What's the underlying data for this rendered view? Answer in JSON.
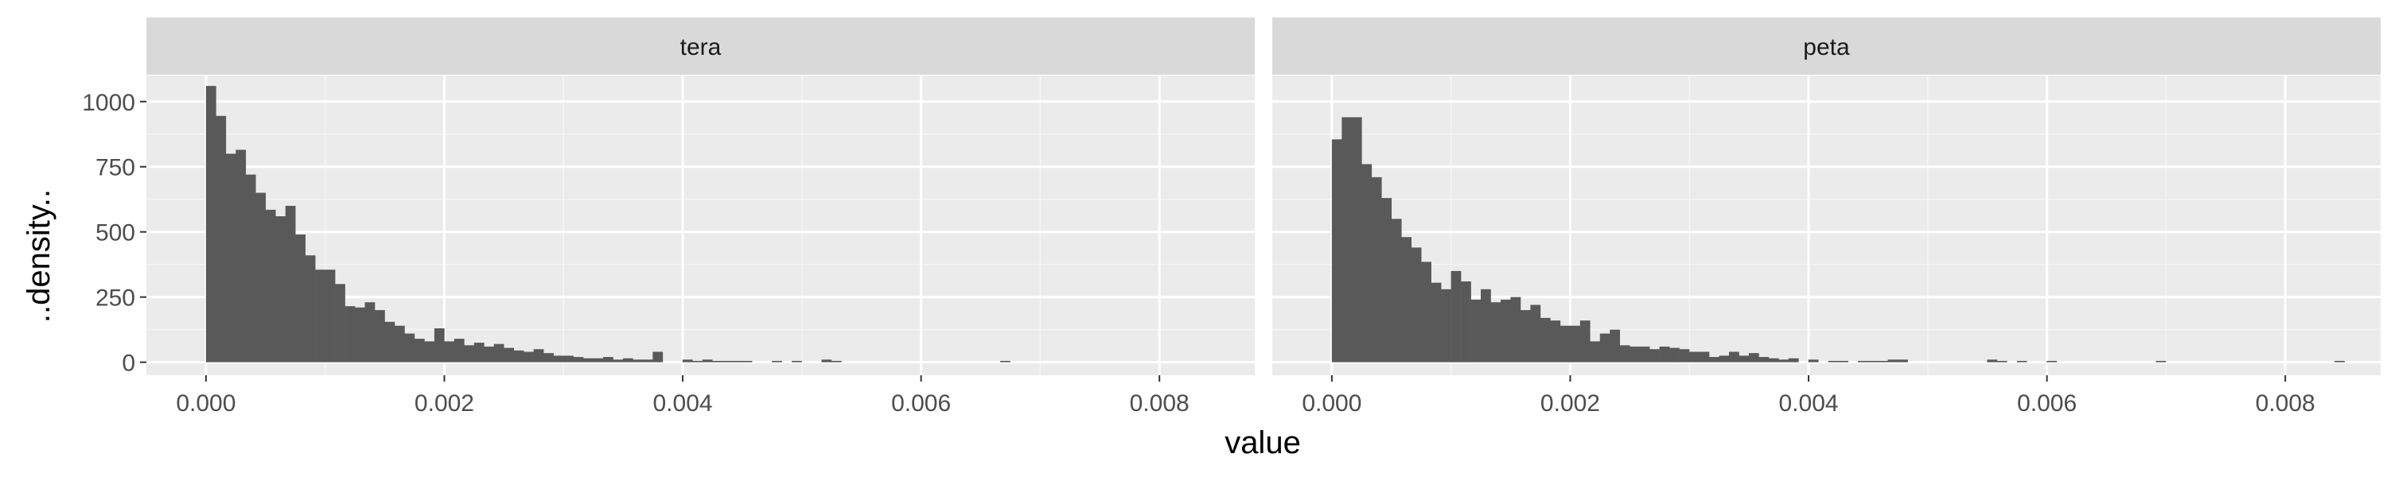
{
  "chart_data": {
    "type": "bar",
    "subtype": "faceted-histogram",
    "xlabel": "value",
    "ylabel": "..density..",
    "x_ticks": [
      "0.000",
      "0.002",
      "0.004",
      "0.006",
      "0.008"
    ],
    "x_tick_values": [
      0,
      0.002,
      0.004,
      0.006,
      0.008
    ],
    "xlim": [
      -0.0005,
      0.0088
    ],
    "y_ticks": [
      "0",
      "250",
      "500",
      "750",
      "1000"
    ],
    "y_tick_values": [
      0,
      250,
      500,
      750,
      1000
    ],
    "ylim": [
      -50,
      1100
    ],
    "grid": true,
    "bin_width": 8.33e-05,
    "bar_color": "#595959",
    "panel_background": "#ebebeb",
    "strip_background": "#d9d9d9",
    "facets": [
      {
        "strip_label": "tera",
        "values": [
          1060,
          945,
          800,
          815,
          720,
          650,
          585,
          560,
          600,
          490,
          410,
          355,
          355,
          300,
          215,
          210,
          230,
          200,
          155,
          140,
          110,
          90,
          80,
          130,
          80,
          90,
          65,
          75,
          60,
          70,
          55,
          45,
          40,
          50,
          35,
          25,
          25,
          20,
          15,
          15,
          20,
          10,
          15,
          10,
          10,
          40,
          0,
          0,
          10,
          5,
          10,
          5,
          5,
          5,
          5,
          0,
          0,
          5,
          0,
          5,
          0,
          0,
          10,
          5,
          0,
          0,
          0,
          0,
          0,
          0,
          0,
          0,
          0,
          0,
          0,
          0,
          0,
          0,
          0,
          0,
          5
        ]
      },
      {
        "strip_label": "peta",
        "values": [
          855,
          940,
          940,
          760,
          710,
          630,
          550,
          480,
          440,
          385,
          305,
          280,
          350,
          310,
          240,
          280,
          230,
          240,
          250,
          200,
          220,
          170,
          160,
          140,
          140,
          160,
          80,
          110,
          125,
          65,
          60,
          60,
          50,
          60,
          55,
          50,
          40,
          40,
          20,
          25,
          40,
          25,
          35,
          20,
          15,
          10,
          15,
          0,
          10,
          0,
          5,
          5,
          0,
          5,
          5,
          5,
          10,
          10,
          0,
          0,
          0,
          0,
          0,
          0,
          0,
          0,
          10,
          5,
          0,
          5,
          0,
          0,
          5,
          0,
          0,
          0,
          0,
          0,
          0,
          0,
          0,
          0,
          0,
          5,
          0,
          0,
          0,
          0,
          0,
          0,
          0,
          0,
          0,
          0,
          0,
          0,
          0,
          0,
          0,
          0,
          0,
          5
        ]
      }
    ]
  }
}
